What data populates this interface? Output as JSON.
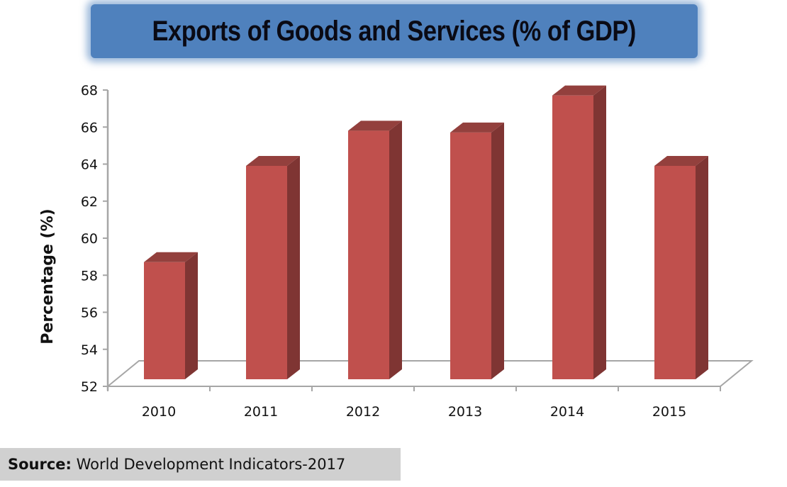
{
  "chart_data": {
    "type": "bar",
    "style": "3d-column",
    "title": "Exports of Goods and Services (% of GDP)",
    "xlabel": "",
    "ylabel": "Percentage (%)",
    "categories": [
      "2010",
      "2011",
      "2012",
      "2013",
      "2014",
      "2015"
    ],
    "series": [
      {
        "name": "Exports of Goods and Services (% of GDP)",
        "values": [
          58.4,
          63.6,
          65.5,
          65.4,
          67.4,
          63.6
        ]
      }
    ],
    "ylim": [
      52,
      68
    ],
    "yticks": [
      52,
      54,
      56,
      58,
      60,
      62,
      64,
      66,
      68
    ],
    "grid": false,
    "legend": "none",
    "colors": {
      "bar_front": "#c0504d",
      "bar_side": "#7f3533",
      "bar_top": "#93403d",
      "axis": "#a6a6a6",
      "title_bg": "#4f81bd",
      "source_bg": "#d0d0d0"
    }
  },
  "source": {
    "label": "Source:",
    "text": " World Development Indicators-2017"
  }
}
